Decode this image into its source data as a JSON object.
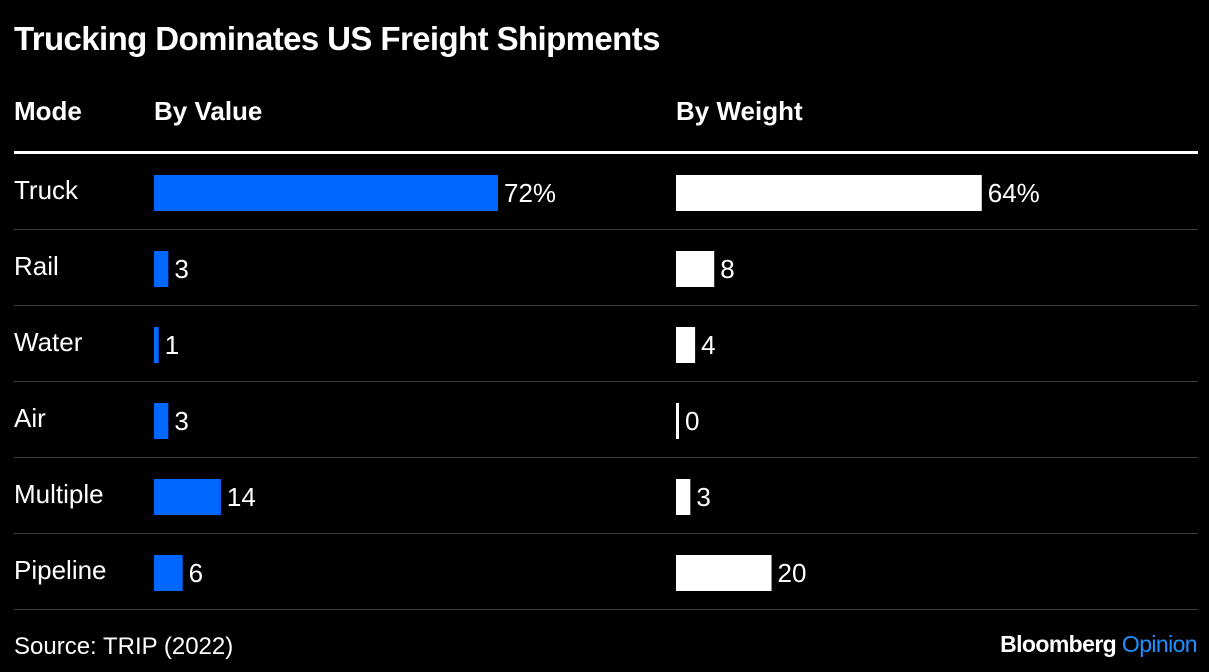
{
  "chart_data": {
    "type": "bar",
    "title": "Trucking Dominates US Freight Shipments",
    "category_header": "Mode",
    "categories": [
      "Truck",
      "Rail",
      "Water",
      "Air",
      "Multiple",
      "Pipeline"
    ],
    "series": [
      {
        "name": "By Value",
        "values": [
          72,
          3,
          1,
          3,
          14,
          6
        ],
        "labels": [
          "72%",
          "3",
          "1",
          "3",
          "14",
          "6"
        ],
        "color": "#0068ff"
      },
      {
        "name": "By Weight",
        "values": [
          64,
          8,
          4,
          0,
          3,
          20
        ],
        "labels": [
          "64%",
          "8",
          "4",
          "0",
          "3",
          "20"
        ],
        "color": "#ffffff"
      }
    ],
    "unit": "%",
    "xlim": [
      0,
      72
    ],
    "grid": false
  },
  "footer": {
    "source": "Source: TRIP (2022)",
    "brand_main": "Bloomberg",
    "brand_sub": "Opinion"
  }
}
